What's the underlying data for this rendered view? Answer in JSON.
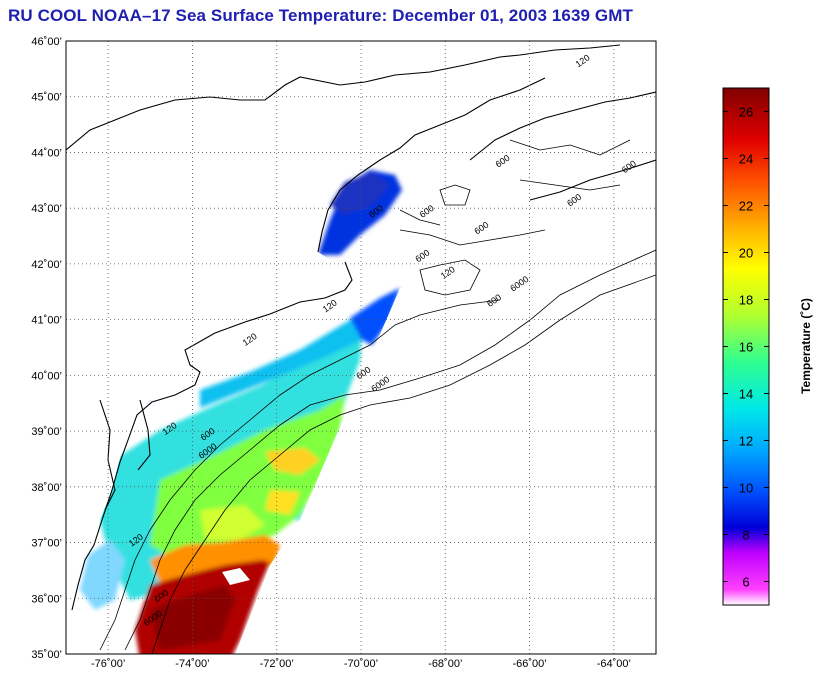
{
  "title": "RU COOL  NOAA–17  Sea Surface Temperature:  December 01, 2003 1639 GMT",
  "map": {
    "lon_range": [
      -77,
      -63
    ],
    "lat_range": [
      35,
      46
    ],
    "lat_ticks": [
      {
        "value": 46,
        "label": "46˚00’"
      },
      {
        "value": 45,
        "label": "45˚00’"
      },
      {
        "value": 44,
        "label": "44˚00’"
      },
      {
        "value": 43,
        "label": "43˚00’"
      },
      {
        "value": 42,
        "label": "42˚00’"
      },
      {
        "value": 41,
        "label": "41˚00’"
      },
      {
        "value": 40,
        "label": "40˚00’"
      },
      {
        "value": 39,
        "label": "39˚00’"
      },
      {
        "value": 38,
        "label": "38˚00’"
      },
      {
        "value": 37,
        "label": "37˚00’"
      },
      {
        "value": 36,
        "label": "36˚00’"
      },
      {
        "value": 35,
        "label": "35˚00’"
      }
    ],
    "lon_ticks": [
      {
        "value": -76,
        "label": "-76˚00’"
      },
      {
        "value": -74,
        "label": "-74˚00’"
      },
      {
        "value": -72,
        "label": "-72˚00’"
      },
      {
        "value": -70,
        "label": "-70˚00’"
      },
      {
        "value": -68,
        "label": "-68˚00’"
      },
      {
        "value": -66,
        "label": "-66˚00’"
      },
      {
        "value": -64,
        "label": "-64˚00’"
      }
    ],
    "contour_labels": [
      {
        "label": "120",
        "lon": -64.7,
        "lat": 45.6
      },
      {
        "label": "600",
        "lon": -66.6,
        "lat": 43.8
      },
      {
        "label": "600",
        "lon": -63.6,
        "lat": 43.7
      },
      {
        "label": "600",
        "lon": -64.9,
        "lat": 43.1
      },
      {
        "label": "600",
        "lon": -69.6,
        "lat": 42.9
      },
      {
        "label": "600",
        "lon": -68.4,
        "lat": 42.9
      },
      {
        "label": "600",
        "lon": -67.1,
        "lat": 42.6
      },
      {
        "label": "600",
        "lon": -68.5,
        "lat": 42.1
      },
      {
        "label": "120",
        "lon": -67.9,
        "lat": 41.8
      },
      {
        "label": "6000",
        "lon": -66.2,
        "lat": 41.6
      },
      {
        "label": "600",
        "lon": -66.8,
        "lat": 41.3
      },
      {
        "label": "120",
        "lon": -70.7,
        "lat": 41.2
      },
      {
        "label": "120",
        "lon": -72.6,
        "lat": 40.6
      },
      {
        "label": "600",
        "lon": -69.9,
        "lat": 40.0
      },
      {
        "label": "6000",
        "lon": -69.5,
        "lat": 39.8
      },
      {
        "label": "120",
        "lon": -74.5,
        "lat": 39.0
      },
      {
        "label": "600",
        "lon": -73.6,
        "lat": 38.9
      },
      {
        "label": "6000",
        "lon": -73.6,
        "lat": 38.6
      },
      {
        "label": "120",
        "lon": -75.3,
        "lat": 37.0
      },
      {
        "label": "600",
        "lon": -74.7,
        "lat": 36.0
      },
      {
        "label": "6000",
        "lon": -74.9,
        "lat": 35.6
      }
    ]
  },
  "colorbar": {
    "label": "Temperature (˚C)",
    "range": [
      5,
      27
    ],
    "ticks": [
      {
        "value": 26,
        "label": "26"
      },
      {
        "value": 24,
        "label": "24"
      },
      {
        "value": 22,
        "label": "22"
      },
      {
        "value": 20,
        "label": "20"
      },
      {
        "value": 18,
        "label": "18"
      },
      {
        "value": 16,
        "label": "16"
      },
      {
        "value": 14,
        "label": "14"
      },
      {
        "value": 12,
        "label": "12"
      },
      {
        "value": 10,
        "label": "10"
      },
      {
        "value": 8,
        "label": "8"
      },
      {
        "value": 6,
        "label": "6"
      }
    ],
    "colors": [
      "#ffffff",
      "#ff40ff",
      "#c000ff",
      "#0000d8",
      "#0050ff",
      "#00a8ff",
      "#00e8e8",
      "#30ff90",
      "#b0ff30",
      "#ffff00",
      "#ffb000",
      "#ff5000",
      "#e00000",
      "#800000"
    ]
  }
}
